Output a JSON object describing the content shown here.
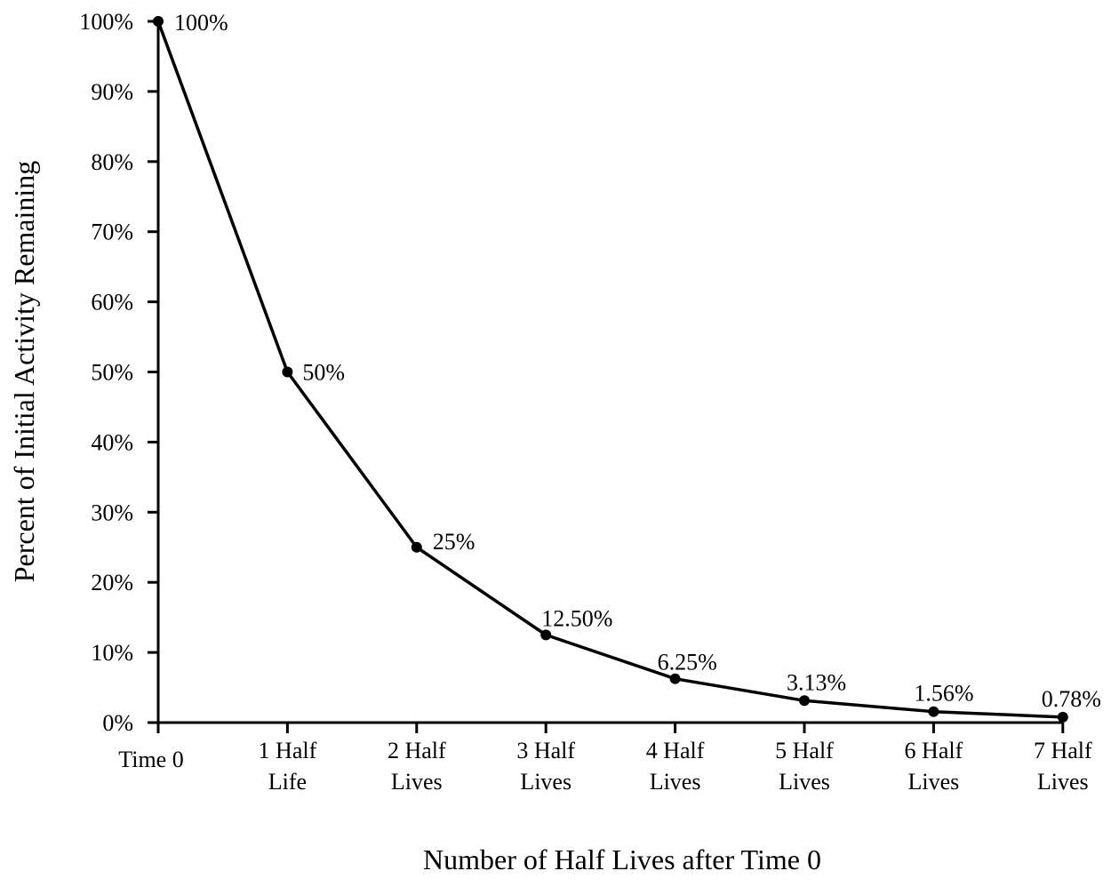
{
  "chart_data": {
    "type": "line",
    "title": "",
    "xlabel": "Number of Half Lives after Time 0",
    "ylabel": "Percent of Initial Activity Remaining",
    "categories": [
      [
        "Time 0"
      ],
      [
        "1 Half",
        "Life"
      ],
      [
        "2 Half",
        "Lives"
      ],
      [
        "3 Half",
        "Lives"
      ],
      [
        "4 Half",
        "Lives"
      ],
      [
        "5 Half",
        "Lives"
      ],
      [
        "6 Half",
        "Lives"
      ],
      [
        "7 Half",
        "Lives"
      ]
    ],
    "series": [
      {
        "values": [
          100,
          50,
          25,
          12.5,
          6.25,
          3.13,
          1.56,
          0.78
        ],
        "labels": [
          "100%",
          "50%",
          "25%",
          "12.50%",
          "6.25%",
          "3.13%",
          "1.56%",
          "0.78%"
        ]
      }
    ],
    "ylim": [
      0,
      100
    ],
    "yticks": [
      0,
      10,
      20,
      30,
      40,
      50,
      60,
      70,
      80,
      90,
      100
    ],
    "ytick_labels": [
      "0%",
      "10%",
      "20%",
      "30%",
      "40%",
      "50%",
      "60%",
      "70%",
      "80%",
      "90%",
      "100%"
    ],
    "grid": false,
    "legend": "none"
  }
}
